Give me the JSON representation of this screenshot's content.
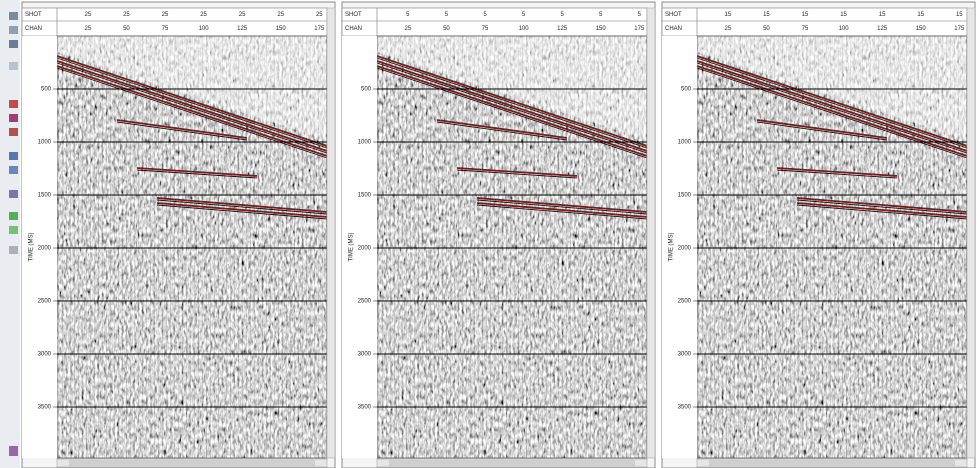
{
  "panels": [
    {
      "header": {
        "shot_label": "SHOT",
        "chan_label": "CHAN",
        "shots": [
          "25",
          "25",
          "25",
          "25",
          "25",
          "25",
          "25"
        ],
        "channels": [
          "25",
          "50",
          "75",
          "100",
          "125",
          "150",
          "175"
        ]
      },
      "time_axis": {
        "label": "TIME (MS)",
        "ticks": [
          500,
          1000,
          1500,
          2000,
          2500,
          3000,
          3500
        ]
      }
    },
    {
      "header": {
        "shot_label": "SHOT",
        "chan_label": "CHAN",
        "shots": [
          "5",
          "5",
          "5",
          "5",
          "5",
          "5",
          "5"
        ],
        "channels": [
          "25",
          "50",
          "75",
          "100",
          "125",
          "150",
          "175"
        ]
      },
      "time_axis": {
        "label": "TIME (MS)",
        "ticks": [
          500,
          1000,
          1500,
          2000,
          2500,
          3000,
          3500
        ]
      }
    },
    {
      "header": {
        "shot_label": "SHOT",
        "chan_label": "CHAN",
        "shots": [
          "15",
          "15",
          "15",
          "15",
          "15",
          "15",
          "15"
        ],
        "channels": [
          "25",
          "50",
          "75",
          "100",
          "125",
          "150",
          "175"
        ]
      },
      "time_axis": {
        "label": "TIME (MS)",
        "ticks": [
          500,
          1000,
          1500,
          2000,
          2500,
          3000,
          3500
        ]
      }
    }
  ]
}
